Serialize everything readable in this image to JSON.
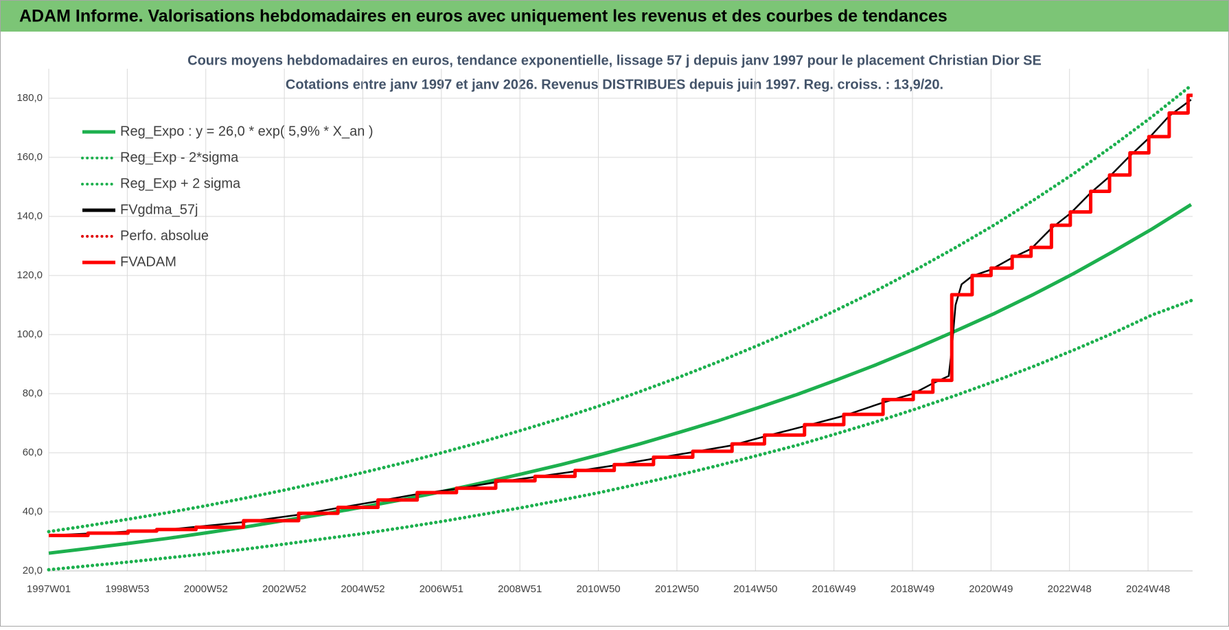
{
  "header": {
    "title": "ADAM Informe. Valorisations hebdomadaires en euros avec uniquement les revenus et des courbes de tendances"
  },
  "chart_data": {
    "type": "line",
    "title": "Cours moyens hebdomadaires en euros, tendance exponentielle, lissage 57 j depuis janv 1997 pour le placement Christian Dior SE",
    "subtitle": "Cotations entre janv 1997 et janv 2026. Revenus DISTRIBUES depuis juin 1997. Reg. croiss. : 13,9/20.",
    "xlim": [
      "1997W01",
      "2026W03"
    ],
    "xticks": [
      "1997W01",
      "1998W53",
      "2000W52",
      "2002W52",
      "2004W52",
      "2006W51",
      "2008W51",
      "2010W50",
      "2012W50",
      "2014W50",
      "2016W49",
      "2018W49",
      "2020W49",
      "2022W48",
      "2024W48"
    ],
    "ylim": [
      20,
      190
    ],
    "yticks": [
      {
        "value": 20,
        "label": "20,0"
      },
      {
        "value": 40,
        "label": "40,0"
      },
      {
        "value": 60,
        "label": "60,0"
      },
      {
        "value": 80,
        "label": "80,0"
      },
      {
        "value": 100,
        "label": "100,0"
      },
      {
        "value": 120,
        "label": "120,0"
      },
      {
        "value": 140,
        "label": "140,0"
      },
      {
        "value": 160,
        "label": "160,0"
      },
      {
        "value": 180,
        "label": "180,0"
      }
    ],
    "grid": true,
    "legend": "top-left",
    "series": [
      {
        "name": "Reg_Expo : y = 26,0 * exp( 5,9% *  X_an )",
        "color": "#1db04e",
        "style": "solid",
        "x": [
          "1997W01",
          "1998W01",
          "1999W01",
          "2000W01",
          "2001W01",
          "2002W01",
          "2003W01",
          "2004W01",
          "2005W01",
          "2006W01",
          "2007W01",
          "2008W01",
          "2009W01",
          "2010W01",
          "2011W01",
          "2012W01",
          "2013W01",
          "2014W01",
          "2015W01",
          "2016W01",
          "2017W01",
          "2018W01",
          "2019W01",
          "2020W01",
          "2021W01",
          "2022W01",
          "2023W01",
          "2024W01",
          "2025W01",
          "2026W01"
        ],
        "values": [
          26.0,
          27.6,
          29.3,
          31.0,
          32.9,
          34.9,
          37.1,
          39.3,
          41.7,
          44.2,
          46.9,
          49.8,
          52.8,
          56.0,
          59.4,
          63.0,
          66.9,
          70.9,
          75.2,
          79.8,
          84.7,
          89.8,
          95.3,
          101.1,
          107.2,
          113.7,
          120.6,
          128.0,
          135.7,
          144.0
        ]
      },
      {
        "name": "Reg_Exp - 2*sigma",
        "color": "#1db04e",
        "style": "dotted",
        "x": [
          "1997W01",
          "1998W01",
          "1999W01",
          "2000W01",
          "2001W01",
          "2002W01",
          "2003W01",
          "2004W01",
          "2005W01",
          "2006W01",
          "2007W01",
          "2008W01",
          "2009W01",
          "2010W01",
          "2011W01",
          "2012W01",
          "2013W01",
          "2014W01",
          "2015W01",
          "2016W01",
          "2017W01",
          "2018W01",
          "2019W01",
          "2020W01",
          "2021W01",
          "2022W01",
          "2023W01",
          "2024W01",
          "2025W01",
          "2026W01"
        ],
        "values": [
          20.4,
          21.7,
          23.0,
          24.4,
          25.8,
          27.4,
          29.1,
          30.9,
          32.7,
          34.7,
          36.8,
          39.1,
          41.4,
          44.0,
          46.6,
          49.5,
          52.5,
          55.7,
          59.1,
          62.6,
          66.5,
          70.5,
          74.8,
          79.3,
          84.2,
          89.3,
          94.7,
          100.4,
          106.6,
          111.5
        ]
      },
      {
        "name": "Reg_Exp + 2 sigma",
        "color": "#1db04e",
        "style": "dotted",
        "x": [
          "1997W01",
          "1998W01",
          "1999W01",
          "2000W01",
          "2001W01",
          "2002W01",
          "2003W01",
          "2004W01",
          "2005W01",
          "2006W01",
          "2007W01",
          "2008W01",
          "2009W01",
          "2010W01",
          "2011W01",
          "2012W01",
          "2013W01",
          "2014W01",
          "2015W01",
          "2016W01",
          "2017W01",
          "2018W01",
          "2019W01",
          "2020W01",
          "2021W01",
          "2022W01",
          "2023W01",
          "2024W01",
          "2025W01",
          "2026W01"
        ],
        "values": [
          33.3,
          35.3,
          37.5,
          39.7,
          42.1,
          44.7,
          47.4,
          50.3,
          53.4,
          56.6,
          60.1,
          63.7,
          67.6,
          71.7,
          76.0,
          80.7,
          85.6,
          90.8,
          96.3,
          102.1,
          108.4,
          114.9,
          121.9,
          129.3,
          137.2,
          145.6,
          154.4,
          163.8,
          173.7,
          184.3
        ]
      },
      {
        "name": "FVgdma_57j",
        "color": "#000000",
        "style": "solid",
        "x": [
          "1997W01",
          "1998W30",
          "2000W10",
          "2001W50",
          "2003W19",
          "2004W19",
          "2005W19",
          "2006W19",
          "2007W19",
          "2008W19",
          "2009W19",
          "2010W19",
          "2011W19",
          "2012W19",
          "2013W19",
          "2014W19",
          "2015W10",
          "2016W10",
          "2017W10",
          "2018W10",
          "2018W50",
          "2019W24",
          "2019W45",
          "2019W49",
          "2020W02",
          "2020W10",
          "2020W24",
          "2020W49",
          "2021W24",
          "2021W49",
          "2022W24",
          "2022W49",
          "2023W24",
          "2023W49",
          "2024W24",
          "2024W49",
          "2025W24",
          "2026W01"
        ],
        "values": [
          32.0,
          33.0,
          34.2,
          36.5,
          39.0,
          41.3,
          43.6,
          46.0,
          47.8,
          50.0,
          51.8,
          53.7,
          55.7,
          58.0,
          60.2,
          62.5,
          65.5,
          69.0,
          72.5,
          77.0,
          80.0,
          83.5,
          86.0,
          95.0,
          110.0,
          117.0,
          119.8,
          122.0,
          126.0,
          129.0,
          136.0,
          141.0,
          148.0,
          153.5,
          160.5,
          166.5,
          174.0,
          179.5
        ]
      },
      {
        "name": "Perfo. absolue",
        "color": "#e00000",
        "style": "dotted",
        "x": [],
        "values": []
      },
      {
        "name": "FVADAM",
        "color": "#ff0000",
        "style": "solid",
        "step": true,
        "x": [
          "1997W01",
          "1998W01",
          "1999W01",
          "1999W39",
          "2000W39",
          "2001W50",
          "2003W19",
          "2004W19",
          "2005W19",
          "2006W19",
          "2007W19",
          "2008W19",
          "2009W19",
          "2010W19",
          "2011W19",
          "2012W19",
          "2013W19",
          "2014W19",
          "2015W10",
          "2016W10",
          "2017W10",
          "2018W10",
          "2018W50",
          "2019W24",
          "2019W49",
          "2020W24",
          "2020W49",
          "2021W24",
          "2021W49",
          "2022W24",
          "2022W49",
          "2023W24",
          "2023W49",
          "2024W24",
          "2024W49",
          "2025W24",
          "2025W49",
          "2026W03"
        ],
        "values": [
          32.0,
          32.8,
          33.5,
          34.0,
          34.8,
          37.0,
          39.5,
          41.5,
          44.0,
          46.5,
          48.0,
          50.5,
          52.0,
          54.0,
          56.0,
          58.5,
          60.5,
          63.0,
          66.0,
          69.5,
          73.0,
          78.0,
          80.5,
          84.5,
          113.5,
          120.0,
          122.5,
          126.5,
          129.5,
          137.0,
          141.5,
          148.5,
          154.0,
          161.5,
          167.0,
          175.0,
          181.0,
          181.0
        ]
      }
    ]
  }
}
